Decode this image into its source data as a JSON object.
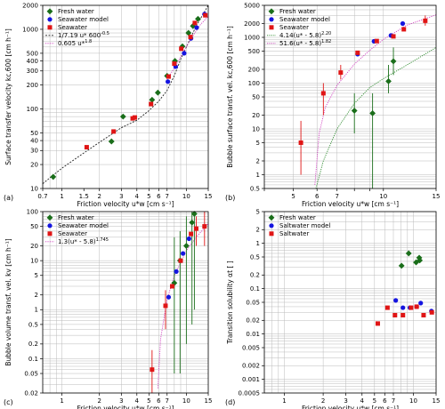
{
  "colors": {
    "fresh": "#1a6e1a",
    "model": "#1515e0",
    "sea": "#e01515",
    "fit1": "#222222",
    "fit2": "#d040c0",
    "fitGreen": "#2e8b2e"
  },
  "chart_data": [
    {
      "type": "scatter",
      "panel_label": "(a)",
      "xlabel": "Friction velocity u*w [cm s⁻¹]",
      "ylabel": "Surface transfer velocity kc,600 [cm h⁻¹]",
      "xscale": "log",
      "yscale": "log",
      "xlim": [
        0.7,
        15
      ],
      "ylim": [
        10,
        2000
      ],
      "xticks": [
        0.7,
        1,
        1.5,
        2,
        3,
        4,
        5,
        6,
        7,
        10,
        15
      ],
      "xticklabels": [
        "0.7",
        "1",
        "1.5",
        "2",
        "3",
        "4",
        "5",
        "6",
        "7",
        "10",
        "15"
      ],
      "yticks": [
        10,
        20,
        30,
        40,
        50,
        100,
        200,
        300,
        400,
        500,
        1000,
        2000
      ],
      "yticklabels": [
        "10",
        "20",
        "30",
        "40",
        "50",
        "100",
        "200",
        "300",
        "400",
        "500",
        "1000",
        "2000"
      ],
      "legend": "upper-left",
      "series": [
        {
          "name": "Fresh water",
          "style": "fresh",
          "points": [
            [
              0.85,
              14
            ],
            [
              2.5,
              39
            ],
            [
              3.1,
              80
            ],
            [
              5.3,
              130
            ],
            [
              5.9,
              160
            ],
            [
              7.0,
              260
            ],
            [
              8.1,
              400
            ],
            [
              9.3,
              610
            ],
            [
              10.4,
              900
            ],
            [
              11.3,
              1100
            ],
            [
              12.4,
              1350
            ]
          ]
        },
        {
          "name": "Seawater model",
          "style": "model",
          "points": [
            [
              7.1,
              220
            ],
            [
              8.2,
              340
            ],
            [
              9.6,
              500
            ],
            [
              10.9,
              770
            ],
            [
              12.1,
              1050
            ],
            [
              14.0,
              1550
            ]
          ]
        },
        {
          "name": "Seawater",
          "style": "sea",
          "points": [
            [
              1.58,
              33
            ],
            [
              2.6,
              52
            ],
            [
              3.7,
              76
            ],
            [
              3.85,
              78
            ],
            [
              5.2,
              115
            ],
            [
              7.2,
              255
            ],
            [
              8.0,
              370
            ],
            [
              9.1,
              570
            ],
            [
              10.8,
              800
            ],
            [
              11.7,
              1200
            ],
            [
              14.2,
              1500
            ]
          ]
        }
      ],
      "fits": [
        {
          "name": "1/7.19 u*  600^-0.5",
          "style": "fit1",
          "points": [
            [
              0.7,
              11.5
            ],
            [
              1,
              18
            ],
            [
              1.5,
              28
            ],
            [
              2,
              38
            ],
            [
              3,
              58
            ],
            [
              4,
              72
            ],
            [
              5,
              95
            ],
            [
              6,
              125
            ],
            [
              7,
              170
            ],
            [
              8,
              260
            ],
            [
              9,
              420
            ],
            [
              10,
              600
            ],
            [
              12,
              1100
            ],
            [
              15,
              2000
            ]
          ]
        },
        {
          "name": "0.605 u*^{1.8}",
          "style": "fit2",
          "points": [
            [
              7,
              230
            ],
            [
              9,
              450
            ],
            [
              11,
              780
            ],
            [
              13,
              1150
            ],
            [
              15,
              1450
            ]
          ]
        }
      ]
    },
    {
      "type": "scatter",
      "panel_label": "(b)",
      "xlabel": "Friction velocity u*w [cm s⁻¹]",
      "ylabel": "Bubble surface transf. vel. kc,600 [cm h⁻¹]",
      "xscale": "log",
      "yscale": "log",
      "xlim": [
        4,
        15
      ],
      "ylim": [
        0.5,
        5000
      ],
      "xticks": [
        4,
        5,
        6,
        7,
        8,
        9,
        10,
        15
      ],
      "xticklabels": [
        "",
        "5",
        "6",
        "7",
        "",
        "",
        "10",
        "15"
      ],
      "yticks": [
        0.5,
        1,
        2,
        5,
        10,
        20,
        50,
        100,
        200,
        500,
        1000,
        2000,
        5000
      ],
      "yticklabels": [
        "0.5",
        "1",
        "2",
        "5",
        "10",
        "20",
        "50",
        "100",
        "200",
        "500",
        "1000",
        "2000",
        "5000"
      ],
      "legend": "upper-left",
      "series": [
        {
          "name": "Fresh water",
          "style": "fresh",
          "points": [
            [
              8.0,
              25
            ],
            [
              9.2,
              22
            ],
            [
              10.4,
              110
            ],
            [
              10.8,
              300
            ]
          ],
          "err": [
            [
              8.0,
              8,
              60
            ],
            [
              9.2,
              0.5,
              60
            ],
            [
              10.4,
              60,
              250
            ],
            [
              10.8,
              150,
              600
            ]
          ]
        },
        {
          "name": "Seawater model",
          "style": "model",
          "points": [
            [
              8.2,
              430
            ],
            [
              9.3,
              820
            ],
            [
              10.6,
              1100
            ],
            [
              11.6,
              2000
            ]
          ]
        },
        {
          "name": "Seawater",
          "style": "sea",
          "points": [
            [
              5.3,
              5
            ],
            [
              6.3,
              60
            ],
            [
              7.2,
              170
            ],
            [
              8.2,
              460
            ],
            [
              9.5,
              830
            ],
            [
              10.8,
              1050
            ],
            [
              11.7,
              1500
            ],
            [
              13.8,
              2300
            ]
          ],
          "err": [
            [
              5.3,
              1,
              15
            ],
            [
              6.3,
              20,
              100
            ],
            [
              7.2,
              120,
              250
            ],
            [
              13.8,
              1800,
              3000
            ]
          ]
        }
      ],
      "fits": [
        {
          "name": "4.14(u* - 5.8)^{2.20}",
          "style": "fitGreen",
          "points": [
            [
              5.95,
              0.5
            ],
            [
              6.3,
              2
            ],
            [
              7,
              10
            ],
            [
              8,
              36
            ],
            [
              9,
              80
            ],
            [
              10,
              125
            ],
            [
              12,
              250
            ],
            [
              15,
              600
            ]
          ]
        },
        {
          "name": "51.6(u* - 5.8)^{1.82}",
          "style": "fit2",
          "points": [
            [
              5.9,
              0.6
            ],
            [
              6.1,
              8
            ],
            [
              6.4,
              30
            ],
            [
              7,
              90
            ],
            [
              8,
              260
            ],
            [
              9,
              520
            ],
            [
              10,
              900
            ],
            [
              12,
              1850
            ],
            [
              15,
              3100
            ]
          ]
        }
      ]
    },
    {
      "type": "scatter",
      "panel_label": "(c)",
      "xlabel": "Friction velocity u*w [cm s⁻¹]",
      "ylabel": "Bubble volume transf. vel. kv [cm h⁻¹]",
      "xscale": "log",
      "yscale": "log",
      "xlim": [
        0.7,
        15
      ],
      "ylim": [
        0.02,
        100
      ],
      "xticks": [
        1,
        2,
        3,
        4,
        5,
        6,
        7,
        10,
        15
      ],
      "xticklabels": [
        "1",
        "2",
        "3",
        "4",
        "5",
        "6",
        "7",
        "10",
        "15"
      ],
      "yticks": [
        0.02,
        0.05,
        0.1,
        0.2,
        0.5,
        1,
        2,
        5,
        10,
        20,
        50,
        100
      ],
      "yticklabels": [
        "0.02",
        "0.05",
        "0.1",
        "0.2",
        "0.5",
        "1",
        "2",
        "5",
        "10",
        "20",
        "50",
        "100"
      ],
      "legend": "upper-left",
      "series": [
        {
          "name": "Fresh water",
          "style": "fresh",
          "points": [
            [
              8.0,
              3.5
            ],
            [
              8.9,
              10
            ],
            [
              10.0,
              20
            ],
            [
              11.1,
              60
            ],
            [
              11.6,
              90
            ]
          ],
          "err": [
            [
              8.0,
              0.05,
              30
            ],
            [
              8.9,
              0.05,
              40
            ],
            [
              10.0,
              0.2,
              80
            ],
            [
              11.1,
              0.5,
              150
            ],
            [
              11.6,
              1,
              150
            ]
          ]
        },
        {
          "name": "Seawater model",
          "style": "model",
          "points": [
            [
              7.2,
              1.8
            ],
            [
              8.3,
              6
            ],
            [
              9.4,
              14
            ],
            [
              10.5,
              28
            ]
          ]
        },
        {
          "name": "Seawater",
          "style": "sea",
          "points": [
            [
              5.3,
              0.06
            ],
            [
              6.8,
              1.2
            ],
            [
              7.7,
              3
            ],
            [
              9.0,
              10
            ],
            [
              10.9,
              35
            ],
            [
              12.0,
              45
            ],
            [
              14.0,
              50
            ]
          ],
          "err": [
            [
              5.3,
              0.02,
              0.15
            ],
            [
              6.8,
              0.4,
              2.5
            ],
            [
              12.0,
              20,
              80
            ],
            [
              14.0,
              20,
              100
            ]
          ]
        }
      ],
      "fits": [
        {
          "name": "1.3(u* - 5.8)^{1.745}",
          "style": "fit2",
          "points": [
            [
              5.9,
              0.025
            ],
            [
              6.2,
              0.25
            ],
            [
              7,
              1.6
            ],
            [
              8,
              5
            ],
            [
              9,
              9
            ],
            [
              10,
              16
            ],
            [
              12,
              30
            ],
            [
              15,
              57
            ]
          ]
        }
      ]
    },
    {
      "type": "scatter",
      "panel_label": "(d)",
      "xlabel": "Friction velocity u*w [cm s⁻¹]",
      "ylabel": "Transition solubility αt [ ]",
      "xscale": "log",
      "yscale": "log",
      "xlim": [
        0.7,
        15
      ],
      "ylim": [
        0.0005,
        5
      ],
      "xticks": [
        1,
        2,
        3,
        4,
        5,
        6,
        7,
        10,
        15
      ],
      "xticklabels": [
        "1",
        "2",
        "3",
        "4",
        "5",
        "6",
        "7",
        "10",
        "15"
      ],
      "yticks": [
        0.0005,
        0.001,
        0.002,
        0.005,
        0.01,
        0.02,
        0.05,
        0.1,
        0.2,
        0.5,
        1,
        2,
        5
      ],
      "yticklabels": [
        "0.0005",
        "0.001",
        "0.002",
        "0.005",
        "0.01",
        "0.02",
        "0.05",
        "0.1",
        "0.2",
        "0.5",
        "1",
        "2",
        "5"
      ],
      "legend": "upper-left",
      "series": [
        {
          "name": "Fresh water",
          "style": "fresh",
          "points": [
            [
              8.1,
              0.32
            ],
            [
              9.2,
              0.6
            ],
            [
              10.5,
              0.38
            ],
            [
              11.1,
              0.48
            ],
            [
              11.2,
              0.42
            ]
          ]
        },
        {
          "name": "Saltwater model",
          "style": "model",
          "points": [
            [
              7.3,
              0.055
            ],
            [
              8.3,
              0.038
            ],
            [
              9.4,
              0.038
            ],
            [
              10.6,
              0.04
            ],
            [
              11.4,
              0.048
            ],
            [
              13.8,
              0.032
            ]
          ]
        },
        {
          "name": "Saltwater",
          "style": "sea",
          "points": [
            [
              5.3,
              0.017
            ],
            [
              6.3,
              0.038
            ],
            [
              7.2,
              0.026
            ],
            [
              8.3,
              0.026
            ],
            [
              9.6,
              0.038
            ],
            [
              10.6,
              0.04
            ],
            [
              12.0,
              0.026
            ],
            [
              13.9,
              0.03
            ]
          ]
        }
      ]
    }
  ]
}
